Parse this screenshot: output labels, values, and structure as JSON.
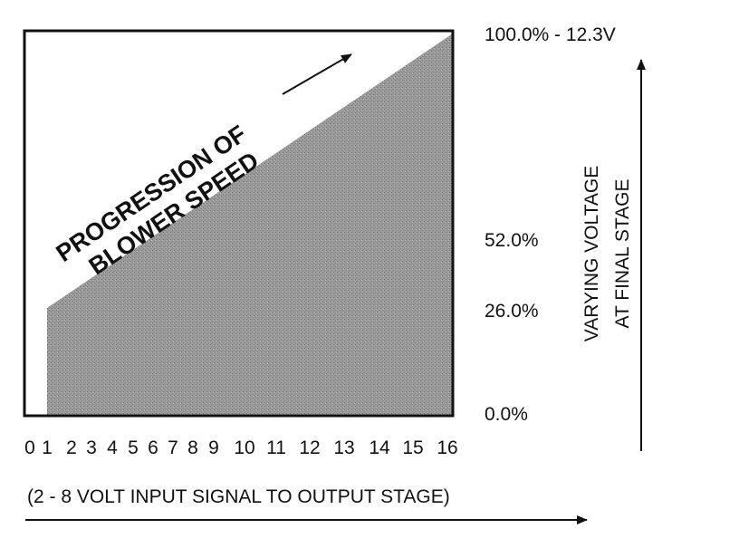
{
  "diagram": {
    "shaded_label": [
      "PROGRESSION OF",
      "BLOWER SPEED"
    ],
    "x_labels": [
      "0",
      "1",
      "2",
      "3",
      "4",
      "5",
      "6",
      "7",
      "8",
      "9",
      "10",
      "11",
      "12",
      "13",
      "14",
      "15",
      "16"
    ],
    "level_labels": [
      "100.0% - 12.3V",
      "52.0%",
      "26.0%",
      "0.0%"
    ],
    "vertical_axis_title": [
      "VARYING VOLTAGE",
      "AT FINAL STAGE"
    ],
    "horizontal_axis_title": "(2 - 8 VOLT INPUT SIGNAL TO OUTPUT STAGE)"
  }
}
